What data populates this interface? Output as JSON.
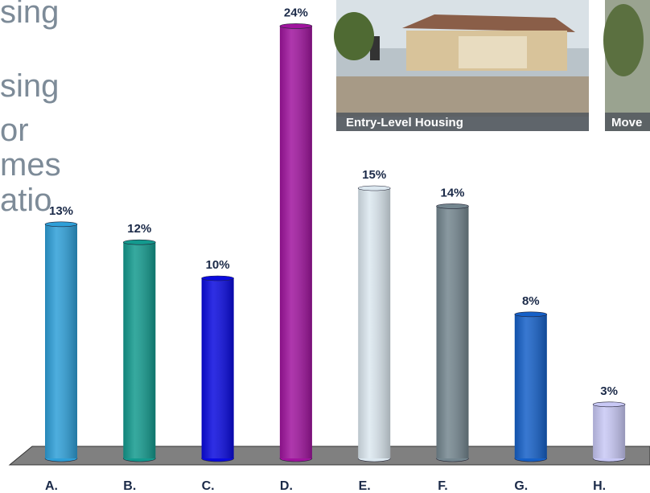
{
  "slide": {
    "text_lines": [
      "sing",
      "sing",
      "or",
      "mes",
      "atio"
    ],
    "photos": [
      {
        "caption": "Entry-Level Housing"
      },
      {
        "caption": "Move"
      }
    ]
  },
  "chart_data": {
    "type": "bar",
    "categories": [
      "A.",
      "B.",
      "C.",
      "D.",
      "E.",
      "F.",
      "G.",
      "H."
    ],
    "values": [
      13,
      12,
      10,
      24,
      15,
      14,
      8,
      3
    ],
    "value_labels": [
      "13%",
      "12%",
      "10%",
      "24%",
      "15%",
      "14%",
      "8%",
      "3%"
    ],
    "colors": [
      "#2e9fd8",
      "#139a8e",
      "#0a0adf",
      "#a0149e",
      "#dce8f0",
      "#74868f",
      "#1560c8",
      "#c8c8f5"
    ]
  }
}
